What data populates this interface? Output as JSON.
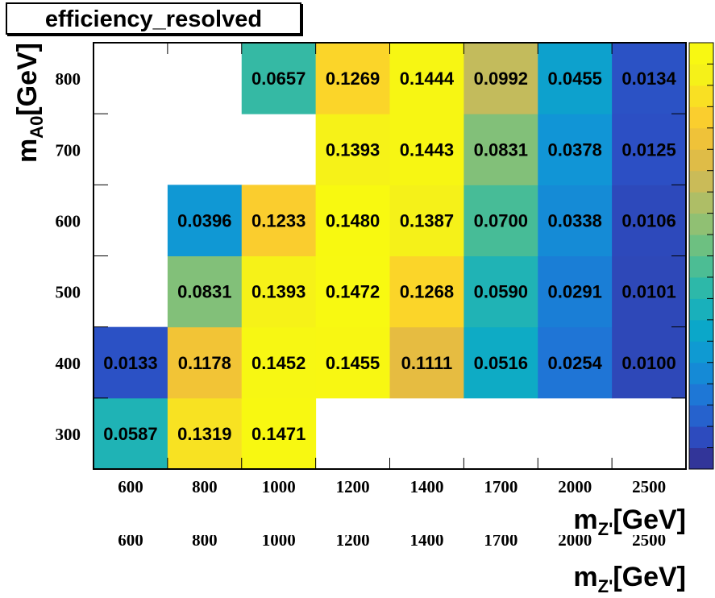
{
  "chart_data": {
    "type": "heatmap",
    "title": "efficiency_resolved",
    "xlabel": {
      "base": "m",
      "sub": "Z'",
      "unit": "[GeV]"
    },
    "ylabel": {
      "base": "m",
      "sub": "A0",
      "unit": "[GeV]"
    },
    "x_categories": [
      "600",
      "800",
      "1000",
      "1200",
      "1400",
      "1700",
      "2000",
      "2500"
    ],
    "y_categories": [
      "300",
      "400",
      "500",
      "600",
      "700",
      "800"
    ],
    "cells": [
      {
        "x": "600",
        "y": "300",
        "value": 0.0587,
        "label": "0.0587"
      },
      {
        "x": "800",
        "y": "300",
        "value": 0.1319,
        "label": "0.1319"
      },
      {
        "x": "1000",
        "y": "300",
        "value": 0.1471,
        "label": "0.1471"
      },
      {
        "x": "600",
        "y": "400",
        "value": 0.0133,
        "label": "0.0133"
      },
      {
        "x": "800",
        "y": "400",
        "value": 0.1178,
        "label": "0.1178"
      },
      {
        "x": "1000",
        "y": "400",
        "value": 0.1452,
        "label": "0.1452"
      },
      {
        "x": "1200",
        "y": "400",
        "value": 0.1455,
        "label": "0.1455"
      },
      {
        "x": "1400",
        "y": "400",
        "value": 0.1111,
        "label": "0.1111"
      },
      {
        "x": "1700",
        "y": "400",
        "value": 0.0516,
        "label": "0.0516"
      },
      {
        "x": "2000",
        "y": "400",
        "value": 0.0254,
        "label": "0.0254"
      },
      {
        "x": "2500",
        "y": "400",
        "value": 0.01,
        "label": "0.0100"
      },
      {
        "x": "800",
        "y": "500",
        "value": 0.0831,
        "label": "0.0831"
      },
      {
        "x": "1000",
        "y": "500",
        "value": 0.1393,
        "label": "0.1393"
      },
      {
        "x": "1200",
        "y": "500",
        "value": 0.1472,
        "label": "0.1472"
      },
      {
        "x": "1400",
        "y": "500",
        "value": 0.1268,
        "label": "0.1268"
      },
      {
        "x": "1700",
        "y": "500",
        "value": 0.059,
        "label": "0.0590"
      },
      {
        "x": "2000",
        "y": "500",
        "value": 0.0291,
        "label": "0.0291"
      },
      {
        "x": "2500",
        "y": "500",
        "value": 0.0101,
        "label": "0.0101"
      },
      {
        "x": "800",
        "y": "600",
        "value": 0.0396,
        "label": "0.0396"
      },
      {
        "x": "1000",
        "y": "600",
        "value": 0.1233,
        "label": "0.1233"
      },
      {
        "x": "1200",
        "y": "600",
        "value": 0.148,
        "label": "0.1480"
      },
      {
        "x": "1400",
        "y": "600",
        "value": 0.1387,
        "label": "0.1387"
      },
      {
        "x": "1700",
        "y": "600",
        "value": 0.07,
        "label": "0.0700"
      },
      {
        "x": "2000",
        "y": "600",
        "value": 0.0338,
        "label": "0.0338"
      },
      {
        "x": "2500",
        "y": "600",
        "value": 0.0106,
        "label": "0.0106"
      },
      {
        "x": "1200",
        "y": "700",
        "value": 0.1393,
        "label": "0.1393"
      },
      {
        "x": "1400",
        "y": "700",
        "value": 0.1443,
        "label": "0.1443"
      },
      {
        "x": "1700",
        "y": "700",
        "value": 0.0831,
        "label": "0.0831"
      },
      {
        "x": "2000",
        "y": "700",
        "value": 0.0378,
        "label": "0.0378"
      },
      {
        "x": "2500",
        "y": "700",
        "value": 0.0125,
        "label": "0.0125"
      },
      {
        "x": "1000",
        "y": "800",
        "value": 0.0657,
        "label": "0.0657"
      },
      {
        "x": "1200",
        "y": "800",
        "value": 0.1269,
        "label": "0.1269"
      },
      {
        "x": "1400",
        "y": "800",
        "value": 0.1444,
        "label": "0.1444"
      },
      {
        "x": "1700",
        "y": "800",
        "value": 0.0992,
        "label": "0.0992"
      },
      {
        "x": "2000",
        "y": "800",
        "value": 0.0455,
        "label": "0.0455"
      },
      {
        "x": "2500",
        "y": "800",
        "value": 0.0134,
        "label": "0.0134"
      }
    ],
    "zrange": [
      0.0,
      0.15
    ],
    "palette": [
      "#352a87",
      "#2c4fc4",
      "#1f74d6",
      "#1194d6",
      "#0aa9c8",
      "#28b7ad",
      "#5cc089",
      "#96c070",
      "#c6bb5b",
      "#eabc3e",
      "#fcd02c",
      "#f5f01a",
      "#f9fb0e"
    ],
    "colorbar_levels": 20,
    "grid": false,
    "legend": "colorbar right"
  }
}
